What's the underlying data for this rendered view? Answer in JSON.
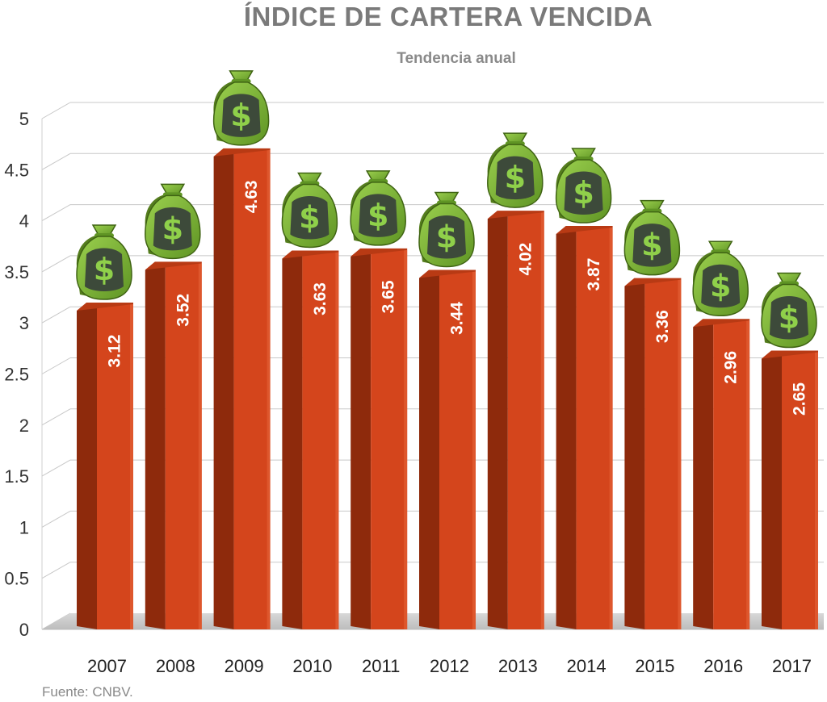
{
  "chart_data": {
    "type": "bar",
    "title": "ÍNDICE DE CARTERA VENCIDA",
    "subtitle": "Tendencia anual",
    "source": "Fuente: CNBV.",
    "categories": [
      "2007",
      "2008",
      "2009",
      "2010",
      "2011",
      "2012",
      "2013",
      "2014",
      "2015",
      "2016",
      "2017"
    ],
    "values": [
      3.12,
      3.52,
      4.63,
      3.63,
      3.65,
      3.44,
      4.02,
      3.87,
      3.36,
      2.96,
      2.65
    ],
    "value_labels": [
      "3.12",
      "3.52",
      "4.63",
      "3.63",
      "3.65",
      "3.44",
      "4.02",
      "3.87",
      "3.36",
      "2.96",
      "2.65"
    ],
    "ylim": [
      0,
      5
    ],
    "yticks": [
      "0",
      "0.5",
      "1",
      "1.5",
      "2",
      "2.5",
      "3",
      "3.5",
      "4",
      "4.5",
      "5"
    ],
    "grid": true,
    "bar_color": "#d4451c",
    "bar_side_color": "#8e2a0c",
    "icon": "money-bag-icon"
  }
}
